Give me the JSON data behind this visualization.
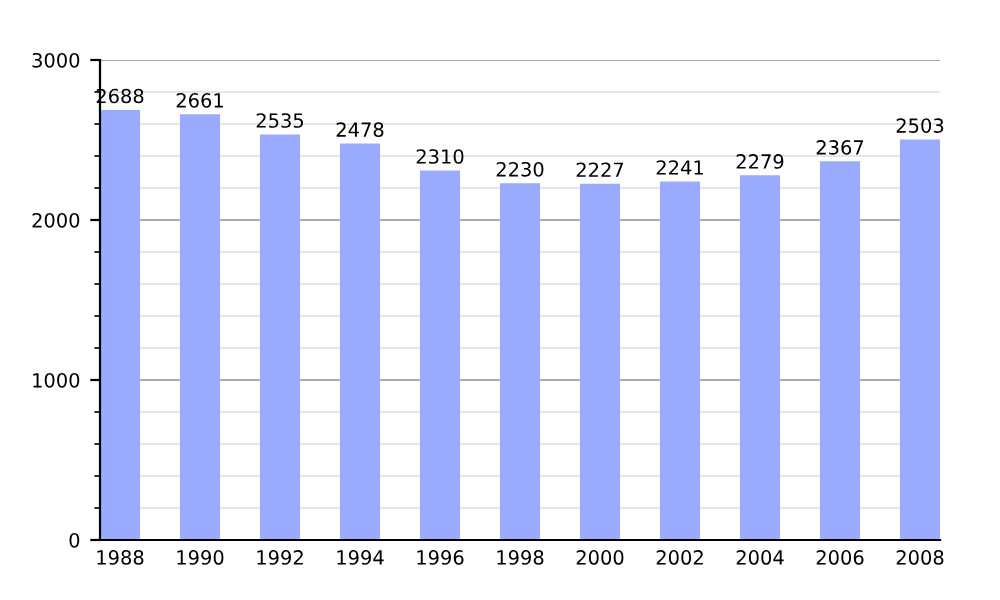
{
  "chart_data": {
    "type": "bar",
    "categories": [
      "1988",
      "1990",
      "1992",
      "1994",
      "1996",
      "1998",
      "2000",
      "2002",
      "2004",
      "2006",
      "2008"
    ],
    "values": [
      2688,
      2661,
      2535,
      2478,
      2310,
      2230,
      2227,
      2241,
      2279,
      2367,
      2503
    ],
    "color": "#99aaff",
    "ylim": [
      0,
      3000
    ],
    "yticks": [
      0,
      1000,
      2000,
      3000
    ],
    "grid": "y",
    "data_labels": true
  }
}
